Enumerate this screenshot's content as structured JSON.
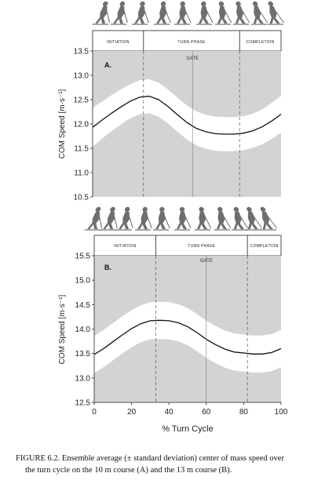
{
  "chart_data": [
    {
      "type": "area",
      "panel_label": "A.",
      "ylabel": "COM Speed [m·s⁻¹]",
      "ylim": [
        10.5,
        13.5
      ],
      "yticks": [
        "10.5",
        "11.0",
        "11.5",
        "12.0",
        "12.5",
        "13.0",
        "13.5"
      ],
      "xlim": [
        0,
        100
      ],
      "phases": [
        "INITIATION",
        "TURN PHASE",
        "COMPLETION"
      ],
      "phase_bounds": [
        27,
        78
      ],
      "gate_label": "GATE",
      "gate_x": 53,
      "x": [
        0,
        5,
        10,
        15,
        20,
        25,
        30,
        35,
        40,
        45,
        50,
        55,
        60,
        65,
        70,
        75,
        80,
        85,
        90,
        95,
        100
      ],
      "mean": [
        11.93,
        12.08,
        12.22,
        12.35,
        12.47,
        12.55,
        12.57,
        12.5,
        12.36,
        12.19,
        12.03,
        11.91,
        11.84,
        11.8,
        11.79,
        11.79,
        11.81,
        11.86,
        11.94,
        12.06,
        12.2
      ],
      "sd": [
        0.4,
        0.38,
        0.37,
        0.36,
        0.35,
        0.35,
        0.35,
        0.35,
        0.35,
        0.35,
        0.35,
        0.35,
        0.35,
        0.35,
        0.35,
        0.35,
        0.35,
        0.35,
        0.36,
        0.37,
        0.38
      ]
    },
    {
      "type": "area",
      "panel_label": "B.",
      "ylabel": "COM Speed [m·s⁻¹]",
      "xlabel": "% Turn Cycle",
      "ylim": [
        12.5,
        15.5
      ],
      "yticks": [
        "12.5",
        "13.0",
        "13.5",
        "14.0",
        "14.5",
        "15.0",
        "15.5"
      ],
      "xlim": [
        0,
        100
      ],
      "xticks": [
        "0",
        "20",
        "40",
        "60",
        "80",
        "100"
      ],
      "phases": [
        "INITIATION",
        "TURN PHASE",
        "COMPLETION"
      ],
      "phase_bounds": [
        33,
        82
      ],
      "gate_label": "GATE",
      "gate_x": 60,
      "x": [
        0,
        5,
        10,
        15,
        20,
        25,
        30,
        35,
        40,
        45,
        50,
        55,
        60,
        65,
        70,
        75,
        80,
        85,
        90,
        95,
        100
      ],
      "mean": [
        13.48,
        13.6,
        13.74,
        13.88,
        14.01,
        14.11,
        14.17,
        14.18,
        14.17,
        14.13,
        14.05,
        13.93,
        13.79,
        13.68,
        13.59,
        13.53,
        13.51,
        13.49,
        13.49,
        13.52,
        13.6
      ],
      "sd": [
        0.38,
        0.38,
        0.38,
        0.38,
        0.38,
        0.38,
        0.38,
        0.38,
        0.38,
        0.38,
        0.38,
        0.38,
        0.38,
        0.38,
        0.38,
        0.38,
        0.38,
        0.38,
        0.38,
        0.38,
        0.38
      ]
    }
  ],
  "colors": {
    "sd_band": "#ffffff",
    "background_fill": "#d3d3d3",
    "mean_line": "#111111",
    "skier_silhouette": "#6e6e6e"
  },
  "caption": {
    "line1": "FIGURE 6.2.  Ensemble average (± standard deviation) center of mass speed over",
    "line2": "the turn cycle on the 10 m course (A) and the 13 m course (B)."
  }
}
